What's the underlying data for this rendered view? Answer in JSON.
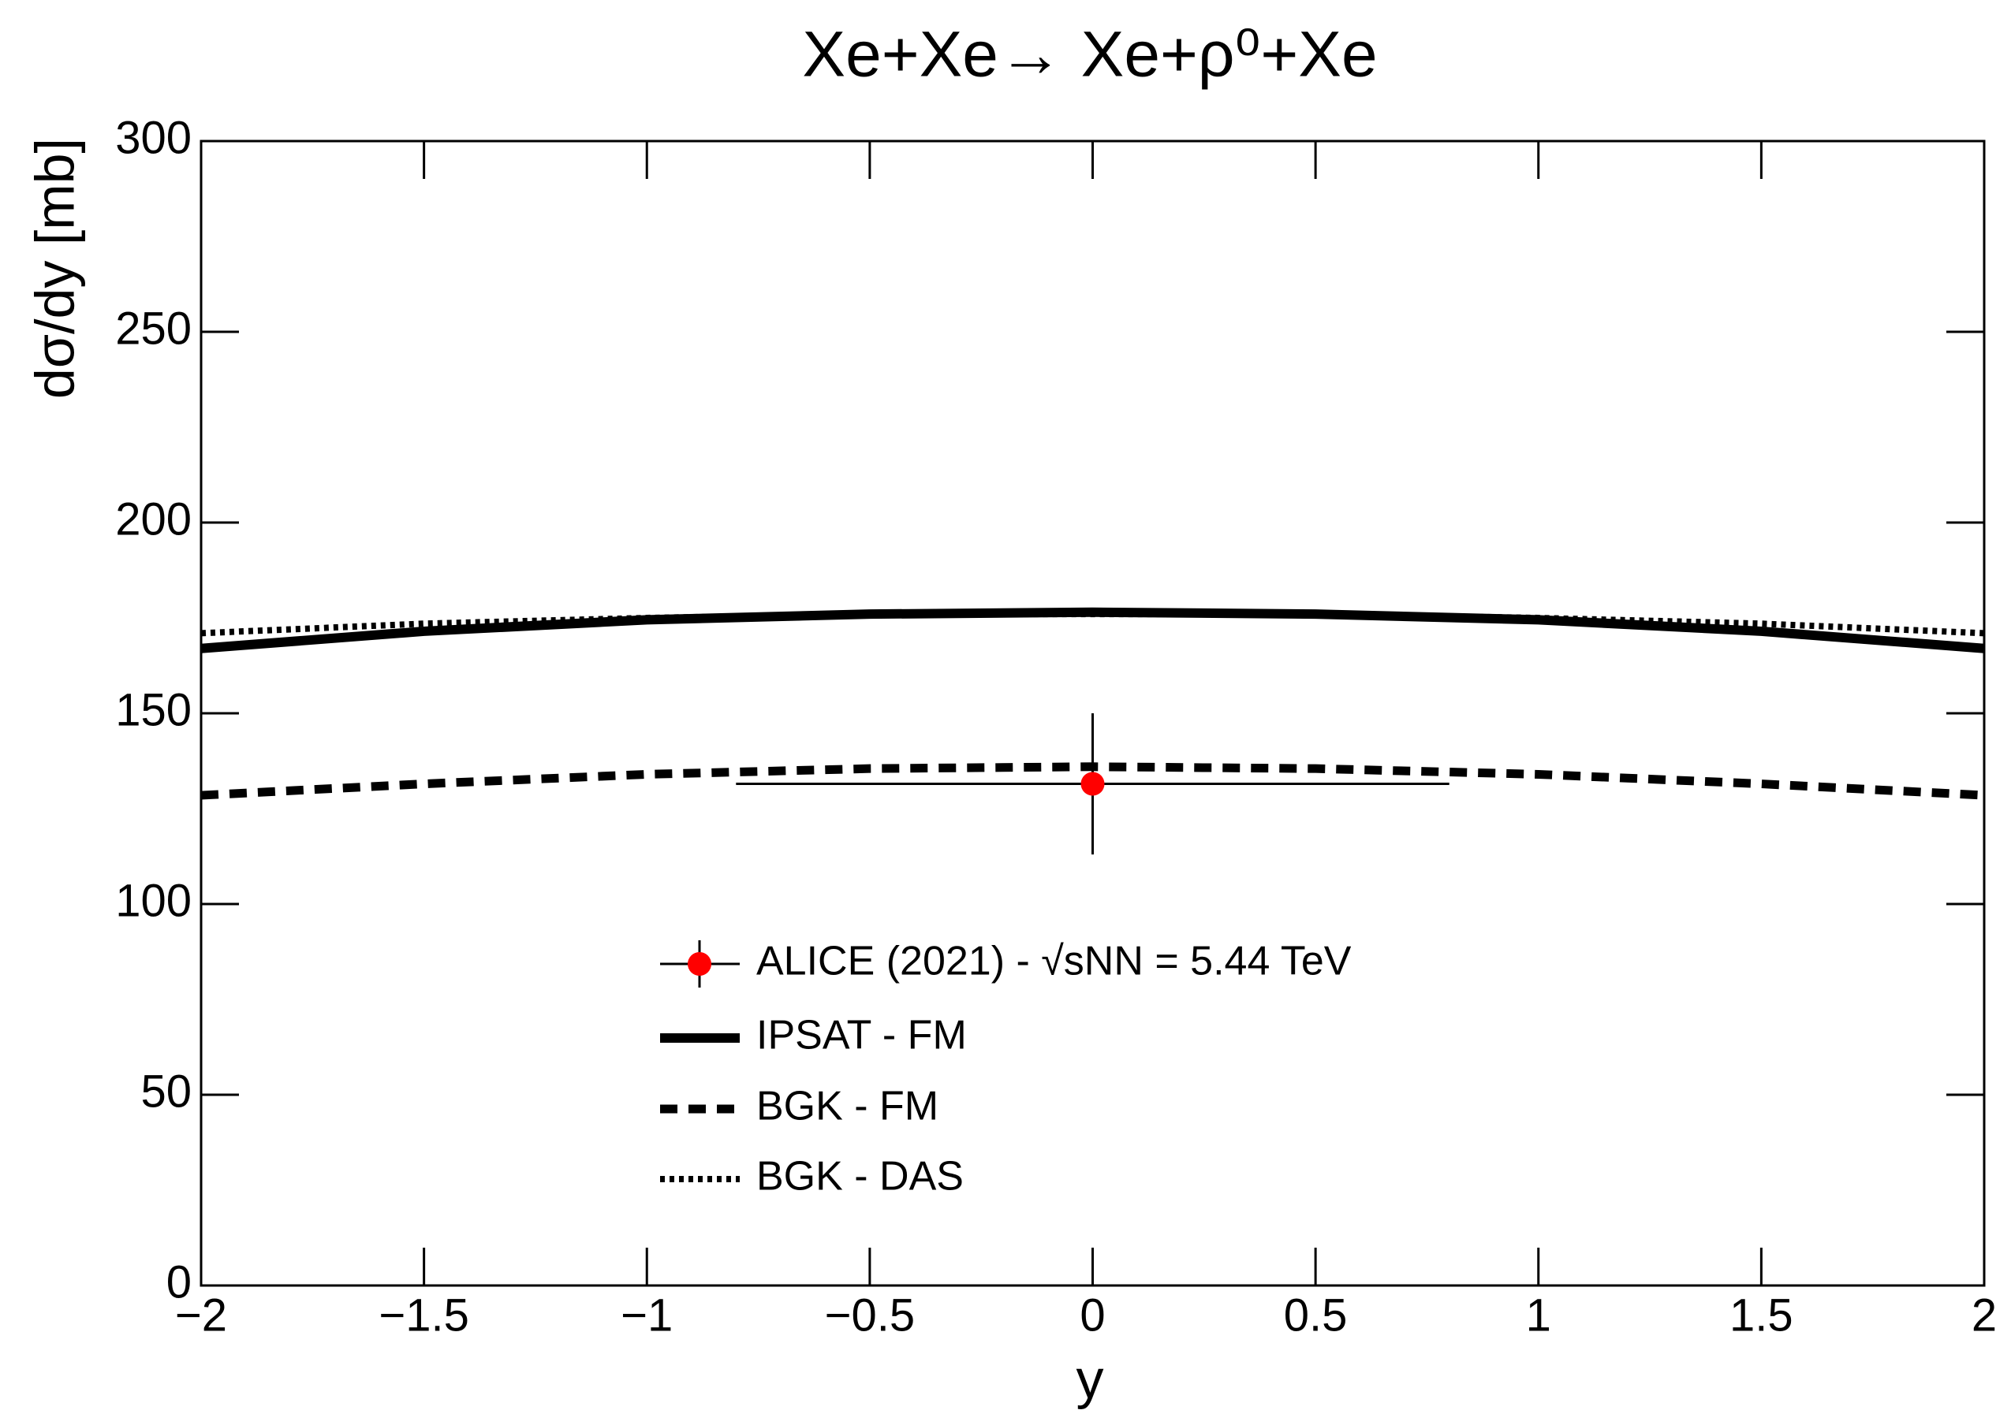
{
  "chart_data": {
    "type": "line",
    "title": "Xe+Xe→ Xe+ρ⁰+Xe",
    "x_label": "y",
    "y_label": "dσ/dy [mb]",
    "x": [
      -2,
      -1.5,
      -1,
      -0.5,
      0,
      0.5,
      1,
      1.5,
      2
    ],
    "series": [
      {
        "name": "ALICE (2021) - √sNN = 5.44 TeV",
        "color": "#ff0000",
        "kind": "points",
        "x": [
          0
        ],
        "values": [
          131.5
        ],
        "yerr": [
          18.5
        ],
        "xerr": [
          0.8
        ]
      },
      {
        "name": "IPSAT - FM",
        "color": "#000000",
        "linestyle": "solid",
        "values": [
          167,
          171.5,
          174.5,
          176,
          176.5,
          176,
          174.5,
          171.5,
          167
        ]
      },
      {
        "name": "BGK - FM",
        "color": "#000000",
        "linestyle": "dashed",
        "values": [
          128.5,
          131.5,
          134,
          135.5,
          136,
          135.5,
          134,
          131.5,
          128.5
        ]
      },
      {
        "name": "BGK - DAS",
        "color": "#000000",
        "linestyle": "dotted",
        "values": [
          171,
          173.5,
          175,
          176,
          176,
          176,
          175,
          173.5,
          171
        ]
      }
    ],
    "xlim": [
      -2,
      2
    ],
    "ylim": [
      0,
      300
    ],
    "xticks": [
      {
        "value": -2,
        "label": "−2"
      },
      {
        "value": -1.5,
        "label": "−1.5"
      },
      {
        "value": -1,
        "label": "−1"
      },
      {
        "value": -0.5,
        "label": "−0.5"
      },
      0,
      0.5,
      1,
      1.5,
      2
    ],
    "yticks": [
      0,
      50,
      100,
      150,
      200,
      250,
      300
    ]
  }
}
